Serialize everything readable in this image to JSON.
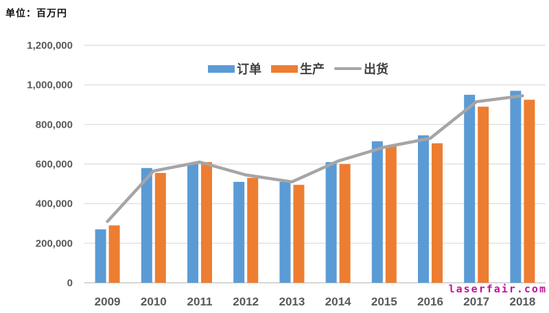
{
  "unit_label": "单位：百万円",
  "watermark": "laserfair.com",
  "chart_data": {
    "type": "bar",
    "title": "单位：百万円",
    "categories": [
      "2009",
      "2010",
      "2011",
      "2012",
      "2013",
      "2014",
      "2015",
      "2016",
      "2017",
      "2018"
    ],
    "series": [
      {
        "key": "orders",
        "name": "订单",
        "type": "bar",
        "color": "#5B9BD5",
        "values": [
          270000,
          580000,
          600000,
          510000,
          510000,
          610000,
          715000,
          745000,
          950000,
          970000
        ]
      },
      {
        "key": "production",
        "name": "生产",
        "type": "bar",
        "color": "#ED7D31",
        "values": [
          290000,
          555000,
          610000,
          530000,
          495000,
          600000,
          690000,
          705000,
          890000,
          925000
        ]
      },
      {
        "key": "shipment",
        "name": "出货",
        "type": "line",
        "color": "#A5A5A5",
        "values": [
          310000,
          565000,
          610000,
          545000,
          510000,
          615000,
          685000,
          730000,
          915000,
          945000
        ]
      }
    ],
    "ylim": [
      0,
      1200000
    ],
    "ytick_interval": 200000,
    "ytick_labels": [
      "0",
      "200,000",
      "400,000",
      "600,000",
      "800,000",
      "1,000,000",
      "1,200,000"
    ],
    "grid": true,
    "legend_position": "top-center",
    "colors": {
      "grid": "#D9D9D9",
      "axis_line": "#BFBFBF",
      "axis_text": "#595959",
      "legend_text": "#404040",
      "watermark": "#C0119C"
    }
  }
}
